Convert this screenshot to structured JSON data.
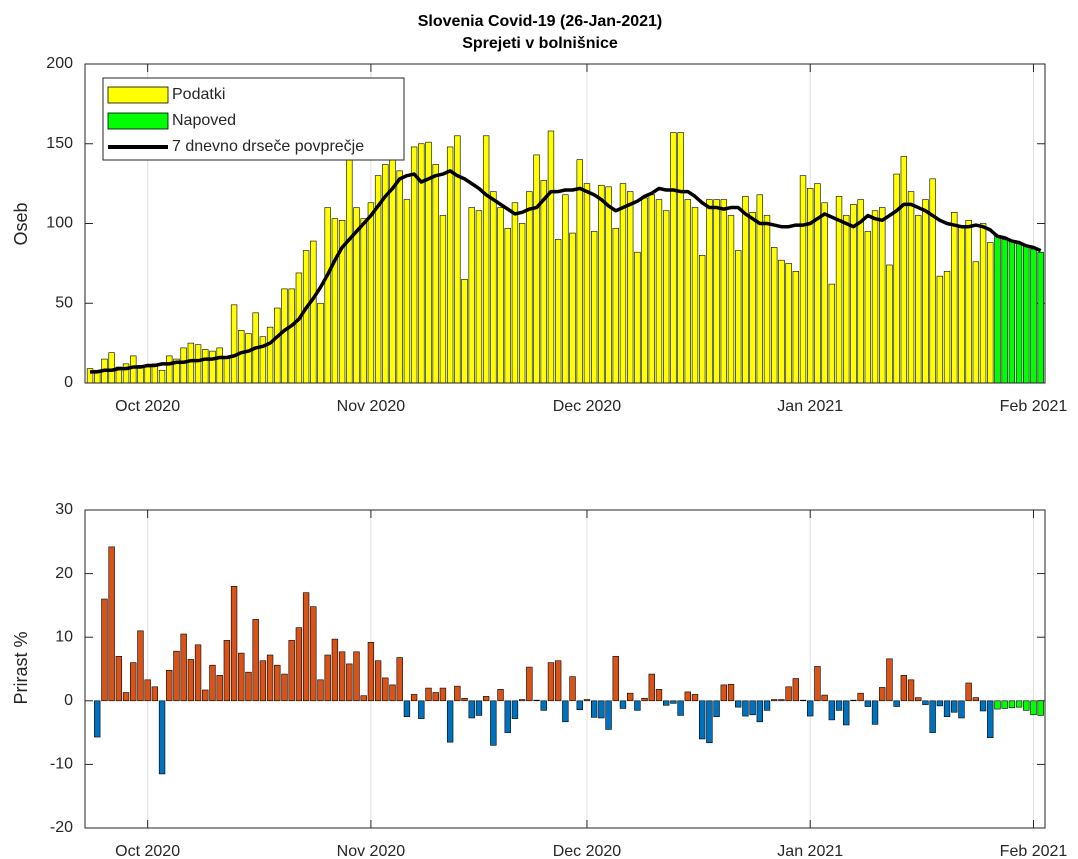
{
  "chart_data": [
    {
      "type": "bar",
      "title": "Slovenia Covid-19 (26-Jan-2021)",
      "subtitle": "Sprejeti v bolnišnice",
      "y_label": "Oseb",
      "xlim": [
        -0.7,
        132.6
      ],
      "xticks": [
        {
          "value": 8,
          "label": "Oct 2020"
        },
        {
          "value": 39,
          "label": "Nov 2020"
        },
        {
          "value": 69,
          "label": "Dec 2020"
        },
        {
          "value": 100,
          "label": "Jan 2021"
        },
        {
          "value": 131,
          "label": "Feb 2021"
        }
      ],
      "ylim": [
        0,
        200
      ],
      "yticks": [
        0,
        50,
        100,
        150,
        200
      ],
      "grid": "x",
      "legend": "northwest",
      "series": [
        {
          "name": "Podatki",
          "color": "#ffff00",
          "x": [
            0,
            1,
            2,
            3,
            4,
            5,
            6,
            7,
            8,
            9,
            10,
            11,
            12,
            13,
            14,
            15,
            16,
            17,
            18,
            19,
            20,
            21,
            22,
            23,
            24,
            25,
            26,
            27,
            28,
            29,
            30,
            31,
            32,
            33,
            34,
            35,
            36,
            37,
            38,
            39,
            40,
            41,
            42,
            43,
            44,
            45,
            46,
            47,
            48,
            49,
            50,
            51,
            52,
            53,
            54,
            55,
            56,
            57,
            58,
            59,
            60,
            61,
            62,
            63,
            64,
            65,
            66,
            67,
            68,
            69,
            70,
            71,
            72,
            73,
            74,
            75,
            76,
            77,
            78,
            79,
            80,
            81,
            82,
            83,
            84,
            85,
            86,
            87,
            88,
            89,
            90,
            91,
            92,
            93,
            94,
            95,
            96,
            97,
            98,
            99,
            100,
            101,
            102,
            103,
            104,
            105,
            106,
            107,
            108,
            109,
            110,
            111,
            112,
            113,
            114,
            115,
            116,
            117,
            118,
            119,
            120,
            121,
            122,
            123,
            124,
            125
          ],
          "values": [
            9,
            8,
            15,
            19,
            10,
            12,
            17,
            11,
            10,
            12,
            8,
            17,
            15,
            22,
            25,
            24,
            21,
            20,
            22,
            16,
            49,
            33,
            31,
            44,
            29,
            35,
            47,
            59,
            59,
            69,
            83,
            89,
            50,
            110,
            103,
            102,
            140,
            110,
            103,
            113,
            130,
            137,
            146,
            133,
            115,
            148,
            150,
            151,
            137,
            105,
            148,
            155,
            65,
            110,
            108,
            155,
            120,
            110,
            97,
            113,
            100,
            120,
            143,
            127,
            158,
            90,
            118,
            94,
            140,
            125,
            95,
            124,
            123,
            97,
            125,
            120,
            82,
            116,
            118,
            115,
            108,
            157,
            157,
            115,
            110,
            80,
            115,
            115,
            115,
            105,
            83,
            117,
            107,
            118,
            105,
            85,
            77,
            75,
            70,
            130,
            122,
            125,
            113,
            62,
            117,
            105,
            112,
            115,
            95,
            108,
            110,
            74,
            131,
            142,
            120,
            105,
            115,
            128,
            67,
            70,
            107,
            98,
            102,
            76,
            100,
            88
          ]
        },
        {
          "name": "Napoved",
          "color": "#00ff00",
          "x": [
            126,
            127,
            128,
            129,
            130,
            131,
            132
          ],
          "values": [
            92,
            90,
            89,
            88,
            86,
            84,
            82
          ]
        },
        {
          "name": "7 dnevno drseče povprečje",
          "type": "line",
          "color": "#000000",
          "x": [
            0,
            1,
            2,
            3,
            4,
            5,
            6,
            7,
            8,
            9,
            10,
            11,
            12,
            13,
            14,
            15,
            16,
            17,
            18,
            19,
            20,
            21,
            22,
            23,
            24,
            25,
            26,
            27,
            28,
            29,
            30,
            31,
            32,
            33,
            34,
            35,
            36,
            37,
            38,
            39,
            40,
            41,
            42,
            43,
            44,
            45,
            46,
            47,
            48,
            49,
            50,
            51,
            52,
            53,
            54,
            55,
            56,
            57,
            58,
            59,
            60,
            61,
            62,
            63,
            64,
            65,
            66,
            67,
            68,
            69,
            70,
            71,
            72,
            73,
            74,
            75,
            76,
            77,
            78,
            79,
            80,
            81,
            82,
            83,
            84,
            85,
            86,
            87,
            88,
            89,
            90,
            91,
            92,
            93,
            94,
            95,
            96,
            97,
            98,
            99,
            100,
            101,
            102,
            103,
            104,
            105,
            106,
            107,
            108,
            109,
            110,
            111,
            112,
            113,
            114,
            115,
            116,
            117,
            118,
            119,
            120,
            121,
            122,
            123,
            124,
            125,
            126,
            127,
            128,
            129,
            130,
            131,
            132
          ],
          "values": [
            7,
            7,
            8,
            8,
            9,
            9,
            10,
            10,
            11,
            11,
            12,
            12,
            13,
            13,
            14,
            14,
            15,
            15,
            16,
            16,
            17,
            19,
            20,
            22,
            23,
            25,
            29,
            33,
            36,
            40,
            47,
            53,
            60,
            68,
            77,
            85,
            90,
            95,
            100,
            105,
            111,
            117,
            122,
            128,
            130,
            131,
            126,
            128,
            130,
            131,
            133,
            130,
            128,
            125,
            122,
            118,
            115,
            112,
            109,
            106,
            107,
            109,
            110,
            115,
            120,
            120,
            121,
            121,
            122,
            120,
            118,
            115,
            111,
            108,
            110,
            112,
            114,
            117,
            119,
            122,
            121,
            121,
            120,
            120,
            117,
            113,
            110,
            110,
            109,
            110,
            110,
            106,
            103,
            100,
            100,
            99,
            98,
            98,
            99,
            99,
            100,
            103,
            106,
            104,
            102,
            100,
            98,
            101,
            105,
            103,
            102,
            105,
            108,
            112,
            112,
            110,
            108,
            105,
            102,
            100,
            99,
            98,
            98,
            99,
            98,
            96,
            92,
            91,
            89,
            88,
            86,
            85,
            83
          ]
        }
      ]
    },
    {
      "type": "bar",
      "y_label": "Prirast %",
      "xlim": [
        -0.7,
        132.6
      ],
      "xticks": [
        {
          "value": 8,
          "label": "Oct 2020"
        },
        {
          "value": 39,
          "label": "Nov 2020"
        },
        {
          "value": 69,
          "label": "Dec 2020"
        },
        {
          "value": 100,
          "label": "Jan 2021"
        },
        {
          "value": 131,
          "label": "Feb 2021"
        }
      ],
      "ylim": [
        -20,
        30
      ],
      "yticks": [
        -20,
        -10,
        0,
        10,
        20,
        30
      ],
      "grid": "x",
      "series": [
        {
          "color_positive": "#d95319",
          "color_negative": "#0072bd",
          "x": [
            1,
            2,
            3,
            4,
            5,
            6,
            7,
            8,
            9,
            10,
            11,
            12,
            13,
            14,
            15,
            16,
            17,
            18,
            19,
            20,
            21,
            22,
            23,
            24,
            25,
            26,
            27,
            28,
            29,
            30,
            31,
            32,
            33,
            34,
            35,
            36,
            37,
            38,
            39,
            40,
            41,
            42,
            43,
            44,
            45,
            46,
            47,
            48,
            49,
            50,
            51,
            52,
            53,
            54,
            55,
            56,
            57,
            58,
            59,
            60,
            61,
            62,
            63,
            64,
            65,
            66,
            67,
            68,
            69,
            70,
            71,
            72,
            73,
            74,
            75,
            76,
            77,
            78,
            79,
            80,
            81,
            82,
            83,
            84,
            85,
            86,
            87,
            88,
            89,
            90,
            91,
            92,
            93,
            94,
            95,
            96,
            97,
            98,
            99,
            100,
            101,
            102,
            103,
            104,
            105,
            106,
            107,
            108,
            109,
            110,
            111,
            112,
            113,
            114,
            115,
            116,
            117,
            118,
            119,
            120,
            121,
            122,
            123,
            124,
            125
          ],
          "values": [
            -5.7,
            16,
            24.2,
            7,
            1.3,
            6,
            11,
            3.3,
            2.2,
            -11.5,
            4.8,
            7.8,
            10.5,
            6.5,
            8.8,
            1.7,
            5.6,
            4,
            9.5,
            18,
            7.5,
            4.5,
            12.8,
            6.3,
            7.2,
            5.6,
            4.2,
            9.5,
            11.5,
            17,
            14.8,
            3.3,
            7.2,
            9.7,
            7.7,
            5.8,
            7.7,
            0.8,
            9.2,
            6.3,
            3.6,
            2.5,
            6.8,
            -2.5,
            1,
            -2.8,
            2,
            1.3,
            2,
            -6.5,
            2.3,
            0.4,
            -2.7,
            -2.3,
            0.7,
            -7,
            1.8,
            -5,
            -2.8,
            0.2,
            5.3,
            0.1,
            -1.5,
            6,
            6.3,
            -3.3,
            3.8,
            -1.4,
            0.2,
            -2.6,
            -2.7,
            -4.5,
            7,
            -1.2,
            1.2,
            -1.5,
            0.4,
            4.2,
            1.8,
            -0.7,
            -0.4,
            -2.3,
            1.4,
            1,
            -6,
            -6.6,
            -2.5,
            2.5,
            2.6,
            -1,
            -2.4,
            -2.2,
            -3.3,
            -1.5,
            0.2,
            0.2,
            2.2,
            3.5,
            0.1,
            -2.4,
            5.4,
            0.9,
            -3,
            -1.5,
            -3.8,
            0.1,
            1.2,
            -0.9,
            -3.7,
            2.1,
            6.6,
            -0.9,
            4,
            3.3,
            0.5,
            -0.6,
            -5,
            -0.8,
            -2.5,
            -1.8,
            -2.7,
            2.8,
            0.5,
            -1.6,
            -5.8
          ]
        },
        {
          "color": "#00ff00",
          "x": [
            126,
            127,
            128,
            129,
            130,
            131,
            132
          ],
          "values": [
            -1.3,
            -1.2,
            -1.1,
            -1.0,
            -1.5,
            -2.2,
            -2.3
          ]
        }
      ]
    }
  ]
}
